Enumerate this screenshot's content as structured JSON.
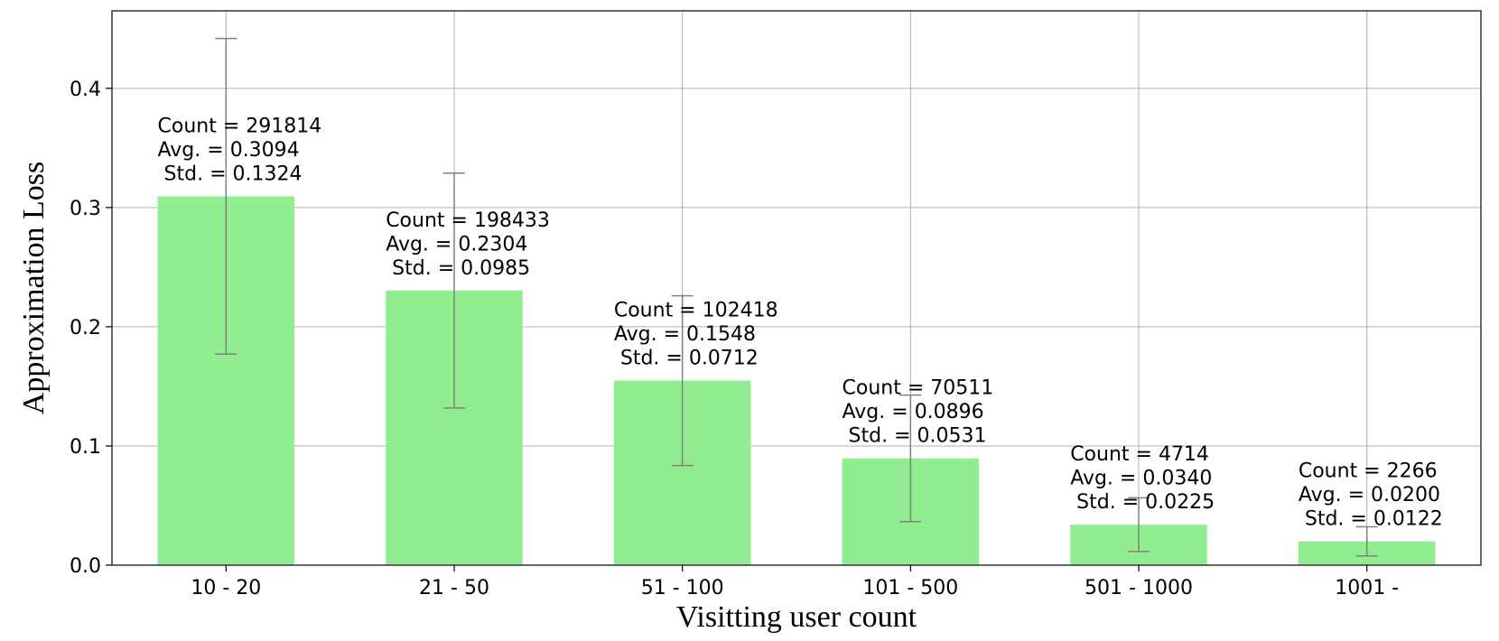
{
  "chart_data": {
    "type": "bar",
    "title": "",
    "xlabel": "Visitting user count",
    "ylabel": "Approximation Loss",
    "ylim": [
      0,
      0.465
    ],
    "yticks": [
      0.0,
      0.1,
      0.2,
      0.3,
      0.4
    ],
    "ytick_labels": [
      "0.0",
      "0.1",
      "0.2",
      "0.3",
      "0.4"
    ],
    "grid": true,
    "bar_color": "#90ee90",
    "errorbar_color": "#808080",
    "grid_color": "#b0b0b0",
    "categories": [
      "10 - 20",
      "21 - 50",
      "51 - 100",
      "101 - 500",
      "501 - 1000",
      "1001 -"
    ],
    "values": [
      0.3094,
      0.2304,
      0.1548,
      0.0896,
      0.034,
      0.02
    ],
    "errors": [
      0.1324,
      0.0985,
      0.0712,
      0.0531,
      0.0225,
      0.0122
    ],
    "annotations": [
      {
        "count": "Count = 291814",
        "avg": "Avg. = 0.3094",
        "std": " Std. = 0.1324"
      },
      {
        "count": "Count = 198433",
        "avg": "Avg. = 0.2304",
        "std": " Std. = 0.0985"
      },
      {
        "count": "Count = 102418",
        "avg": "Avg. = 0.1548",
        "std": " Std. = 0.0712"
      },
      {
        "count": "Count = 70511",
        "avg": "Avg. = 0.0896",
        "std": " Std. = 0.0531"
      },
      {
        "count": "Count = 4714",
        "avg": "Avg. = 0.0340",
        "std": " Std. = 0.0225"
      },
      {
        "count": "Count = 2266",
        "avg": "Avg. = 0.0200",
        "std": " Std. = 0.0122"
      }
    ]
  }
}
